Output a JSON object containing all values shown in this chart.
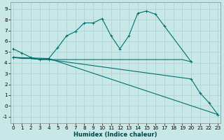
{
  "xlabel": "Humidex (Indice chaleur)",
  "bg_color": "#c8e8e8",
  "grid_color": "#b0d4d4",
  "line_color": "#007070",
  "series": [
    {
      "x": [
        0,
        1,
        2,
        3,
        4,
        5,
        6,
        7,
        8,
        9,
        10,
        11,
        12,
        13,
        14,
        15,
        16,
        17,
        20
      ],
      "y": [
        5.3,
        4.9,
        4.5,
        4.3,
        4.4,
        5.4,
        6.5,
        6.9,
        7.7,
        7.7,
        8.1,
        6.5,
        5.3,
        6.5,
        8.6,
        8.8,
        8.5,
        7.4,
        4.1
      ],
      "marker": true
    },
    {
      "x": [
        0,
        1,
        2,
        3,
        4,
        5,
        6,
        7,
        8,
        9,
        10,
        11,
        12,
        13,
        14,
        15,
        16,
        17,
        18,
        19,
        20
      ],
      "y": [
        4.5,
        4.4,
        4.4,
        4.3,
        4.3,
        4.3,
        4.3,
        4.3,
        4.3,
        4.3,
        4.3,
        4.3,
        4.3,
        4.3,
        4.3,
        4.3,
        4.3,
        4.3,
        4.3,
        4.3,
        4.1
      ],
      "marker": false
    },
    {
      "x": [
        0,
        4,
        23
      ],
      "y": [
        4.5,
        4.4,
        -0.8
      ],
      "marker": true
    },
    {
      "x": [
        0,
        4,
        20,
        21,
        22,
        23
      ],
      "y": [
        4.5,
        4.3,
        2.5,
        1.2,
        0.3,
        -0.8
      ],
      "marker": true
    }
  ],
  "xlim": [
    -0.3,
    23.3
  ],
  "ylim": [
    -1.6,
    9.6
  ],
  "yticks": [
    -1,
    0,
    1,
    2,
    3,
    4,
    5,
    6,
    7,
    8,
    9
  ],
  "xticks": [
    0,
    1,
    2,
    3,
    4,
    5,
    6,
    7,
    8,
    9,
    10,
    11,
    12,
    13,
    14,
    15,
    16,
    17,
    18,
    19,
    20,
    21,
    22,
    23
  ],
  "tick_fontsize": 5.2,
  "xlabel_fontsize": 6.0,
  "lw": 0.8,
  "markersize": 2.8
}
